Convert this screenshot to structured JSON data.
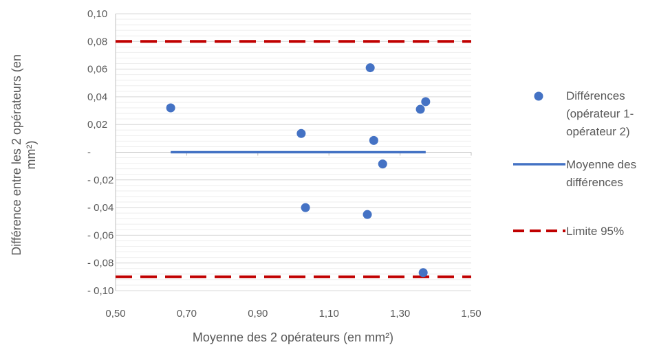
{
  "chart_data": {
    "type": "scatter",
    "xlabel": "Moyenne des 2 opérateurs (en mm²)",
    "ylabel": "Différence entre les 2 opérateurs (en mm²)",
    "xlim": [
      0.5,
      1.5
    ],
    "ylim": [
      -0.1,
      0.1
    ],
    "x_ticks": [
      {
        "value": 0.5,
        "label": "0,50"
      },
      {
        "value": 0.7,
        "label": "0,70"
      },
      {
        "value": 0.9,
        "label": "0,90"
      },
      {
        "value": 1.1,
        "label": "1,10"
      },
      {
        "value": 1.3,
        "label": "1,30"
      },
      {
        "value": 1.5,
        "label": "1,50"
      }
    ],
    "y_ticks": [
      {
        "value": 0.1,
        "label": "0,10"
      },
      {
        "value": 0.08,
        "label": "0,08"
      },
      {
        "value": 0.06,
        "label": "0,06"
      },
      {
        "value": 0.04,
        "label": "0,04"
      },
      {
        "value": 0.02,
        "label": "0,02"
      },
      {
        "value": 0,
        "label": "-"
      },
      {
        "value": -0.02,
        "label": "- 0,02"
      },
      {
        "value": -0.04,
        "label": "- 0,04"
      },
      {
        "value": -0.06,
        "label": "- 0,06"
      },
      {
        "value": -0.08,
        "label": "- 0,08"
      },
      {
        "value": -0.1,
        "label": "- 0,10"
      }
    ],
    "grid": true,
    "legend_position": "right",
    "series": [
      {
        "name": "Différences (opérateur 1- opérateur 2)",
        "legend_lines": [
          "Différences",
          "(opérateur 1-",
          "opérateur 2)"
        ],
        "kind": "scatter",
        "color": "#4472C4",
        "points": [
          {
            "x": 0.655,
            "y": 0.032
          },
          {
            "x": 1.022,
            "y": 0.0135
          },
          {
            "x": 1.034,
            "y": -0.04
          },
          {
            "x": 1.208,
            "y": -0.045
          },
          {
            "x": 1.216,
            "y": 0.061
          },
          {
            "x": 1.226,
            "y": 0.0085
          },
          {
            "x": 1.251,
            "y": -0.0085
          },
          {
            "x": 1.357,
            "y": 0.031
          },
          {
            "x": 1.365,
            "y": -0.087
          },
          {
            "x": 1.372,
            "y": 0.0365
          }
        ]
      },
      {
        "name": "Moyenne des différences",
        "legend_lines": [
          "Moyenne des",
          "différences"
        ],
        "kind": "line",
        "color": "#4472C4",
        "points": [
          {
            "x": 0.655,
            "y": 0
          },
          {
            "x": 1.372,
            "y": 0
          }
        ]
      },
      {
        "name": "Limite 95%",
        "legend_lines": [
          "Limite 95%"
        ],
        "kind": "dashed",
        "color": "#C00000",
        "lines": [
          [
            {
              "x": 0.5,
              "y": 0.08
            },
            {
              "x": 1.5,
              "y": 0.08
            }
          ],
          [
            {
              "x": 0.5,
              "y": -0.09
            },
            {
              "x": 1.5,
              "y": -0.09
            }
          ]
        ]
      }
    ]
  }
}
